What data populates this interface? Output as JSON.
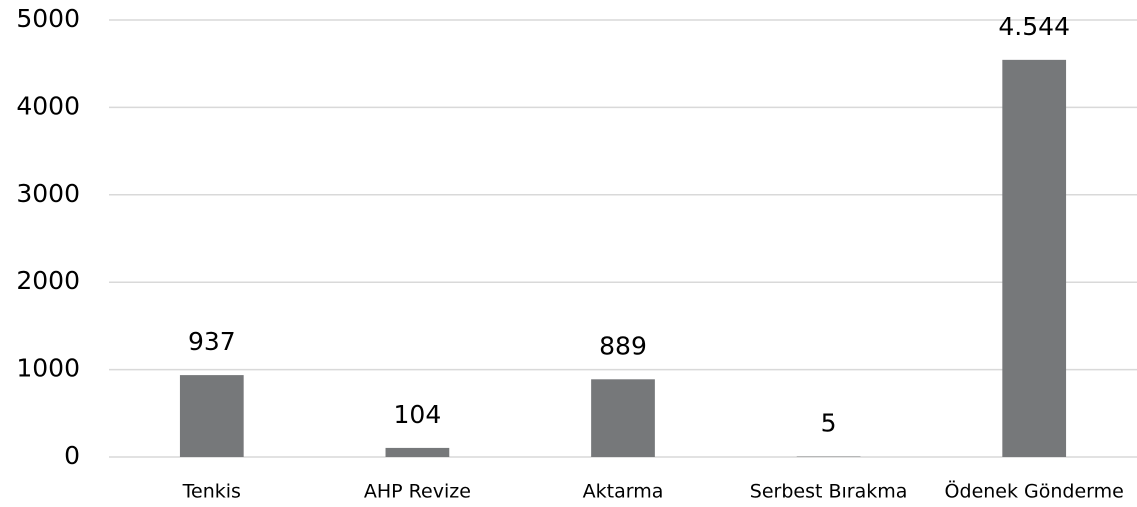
{
  "chart_data": {
    "type": "bar",
    "categories": [
      "Tenkis",
      "AHP Revize",
      "Aktarma",
      "Serbest Bırakma",
      "Ödenek Gönderme"
    ],
    "values": [
      937,
      104,
      889,
      5,
      4544
    ],
    "value_labels": [
      "937",
      "104",
      "889",
      "5",
      "4.544"
    ],
    "color": "#76787a",
    "ylim": [
      0,
      5000
    ],
    "yticks": [
      0,
      1000,
      2000,
      3000,
      4000,
      5000
    ],
    "grid": true
  }
}
